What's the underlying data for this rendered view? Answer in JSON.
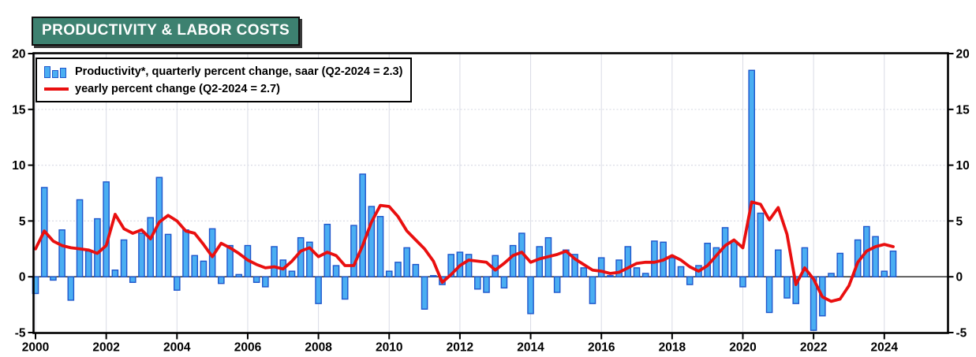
{
  "title": "PRODUCTIVITY & LABOR COSTS",
  "legend": {
    "bar_series_label": "Productivity*, quarterly percent change, saar (Q2-2024 = 2.3)",
    "line_series_label": "yearly percent change (Q2-2024 = 2.7)"
  },
  "colors": {
    "title_bg": "#3d8170",
    "title_text": "#ffffff",
    "bar_fill": "#4aaef2",
    "bar_border": "#1e56cc",
    "line_color": "#e90f0f",
    "zero_line": "#3f3f3f",
    "grid": "#d9dbe5",
    "frame": "#000000"
  },
  "chart_data": {
    "type": "bar",
    "title": "PRODUCTIVITY & LABOR COSTS",
    "frequency": "quarterly",
    "start_period": "2000Q1",
    "end_period": "2024Q2",
    "ylim": [
      -5,
      20
    ],
    "yticks": [
      -5,
      0,
      5,
      10,
      15,
      20
    ],
    "xtick_years": [
      2000,
      2002,
      2004,
      2006,
      2008,
      2010,
      2012,
      2014,
      2016,
      2018,
      2020,
      2022,
      2024
    ],
    "grid": true,
    "legend_position": "top-left",
    "series": [
      {
        "name": "Productivity*, quarterly percent change, saar",
        "type": "bar",
        "last_value_note": "Q2-2024 = 2.3",
        "values": [
          -1.5,
          8.0,
          -0.3,
          4.2,
          -2.1,
          6.9,
          2.3,
          5.2,
          8.5,
          0.6,
          3.3,
          -0.5,
          3.9,
          5.3,
          8.9,
          3.8,
          -1.2,
          4.2,
          1.9,
          1.4,
          4.3,
          -0.6,
          2.8,
          0.2,
          2.8,
          -0.5,
          -0.9,
          2.7,
          1.5,
          0.5,
          3.5,
          3.1,
          -2.4,
          4.7,
          1.0,
          -2.0,
          4.6,
          9.2,
          6.3,
          5.4,
          0.5,
          1.3,
          2.6,
          1.1,
          -2.9,
          0.1,
          -0.7,
          2.0,
          2.2,
          2.0,
          -1.1,
          -1.4,
          1.9,
          -1.0,
          2.8,
          3.9,
          -3.3,
          2.7,
          3.5,
          -1.4,
          2.4,
          2.0,
          0.8,
          -2.4,
          1.7,
          0.1,
          1.5,
          2.7,
          0.8,
          0.3,
          3.2,
          3.1,
          1.7,
          0.9,
          -0.7,
          1.0,
          3.0,
          2.6,
          4.4,
          3.2,
          -0.9,
          18.5,
          5.7,
          -3.2,
          2.4,
          -1.9,
          -2.4,
          2.6,
          -4.8,
          -3.5,
          0.3,
          2.1,
          0.0,
          3.3,
          4.5,
          3.6,
          0.5,
          2.3
        ]
      },
      {
        "name": "yearly percent change",
        "type": "line",
        "last_value_note": "Q2-2024 = 2.7",
        "values": [
          2.5,
          4.1,
          3.2,
          2.8,
          2.6,
          2.5,
          2.4,
          2.1,
          2.8,
          5.6,
          4.3,
          3.9,
          4.2,
          3.4,
          4.9,
          5.5,
          5.0,
          4.1,
          3.9,
          2.9,
          1.8,
          3.0,
          2.6,
          2.1,
          1.5,
          1.1,
          0.8,
          0.9,
          0.7,
          1.4,
          2.3,
          2.6,
          1.8,
          2.2,
          1.9,
          1.0,
          1.0,
          2.8,
          4.9,
          6.4,
          6.3,
          5.4,
          4.1,
          3.3,
          2.5,
          1.4,
          -0.5,
          0.2,
          1.0,
          1.5,
          1.4,
          1.3,
          0.6,
          1.2,
          1.9,
          2.2,
          1.3,
          1.6,
          1.8,
          2.0,
          2.3,
          1.6,
          1.1,
          0.6,
          0.5,
          0.3,
          0.4,
          0.8,
          1.2,
          1.3,
          1.3,
          1.5,
          1.9,
          1.5,
          0.9,
          0.5,
          1.0,
          1.9,
          2.8,
          3.3,
          2.6,
          6.7,
          6.5,
          5.1,
          6.2,
          3.8,
          -0.7,
          0.8,
          -0.2,
          -1.8,
          -2.2,
          -2.0,
          -0.8,
          1.3,
          2.3,
          2.7,
          2.9,
          2.7
        ]
      }
    ]
  }
}
